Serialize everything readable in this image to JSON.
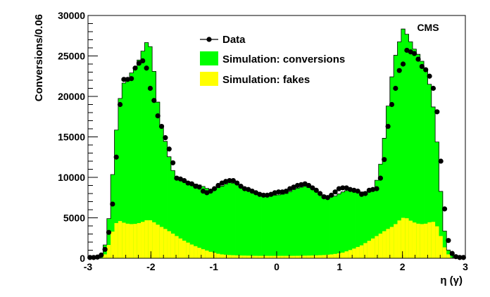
{
  "chart_data": {
    "type": "bar",
    "tag": "CMS",
    "xlabel": "η (γ)",
    "ylabel": "Conversions/0.06",
    "xlim": [
      -3,
      3
    ],
    "ylim": [
      0,
      30000
    ],
    "x_ticks": [
      "-3",
      "-2",
      "-1",
      "0",
      "1",
      "2",
      "3"
    ],
    "y_ticks": [
      "0",
      "5000",
      "10000",
      "15000",
      "20000",
      "25000",
      "30000"
    ],
    "bin_width": 0.06,
    "colors": {
      "conversions": "#00ff00",
      "fakes": "#ffff00",
      "data": "#000000"
    },
    "legend": {
      "placement": "top-center",
      "entries": [
        "Data",
        "Simulation: conversions",
        "Simulation: fakes"
      ]
    },
    "series": [
      {
        "name": "Simulation: conversions",
        "type": "stacked-hist",
        "points": [
          [
            -3.0,
            0
          ],
          [
            -2.85,
            0
          ],
          [
            -2.76,
            700
          ],
          [
            -2.7,
            2600
          ],
          [
            -2.64,
            7200
          ],
          [
            -2.58,
            13500
          ],
          [
            -2.52,
            18200
          ],
          [
            -2.46,
            21300
          ],
          [
            -2.4,
            22000
          ],
          [
            -2.34,
            22600
          ],
          [
            -2.28,
            23200
          ],
          [
            -2.22,
            24000
          ],
          [
            -2.16,
            25000
          ],
          [
            -2.1,
            26200
          ],
          [
            -2.04,
            27100
          ],
          [
            -1.98,
            25200
          ],
          [
            -1.92,
            21000
          ],
          [
            -1.86,
            17600
          ],
          [
            -1.8,
            15300
          ],
          [
            -1.74,
            13600
          ],
          [
            -1.68,
            11500
          ],
          [
            -1.62,
            10200
          ],
          [
            -1.5,
            9700
          ],
          [
            -1.35,
            9300
          ],
          [
            -1.2,
            9000
          ],
          [
            -1.05,
            8400
          ],
          [
            -0.9,
            8800
          ],
          [
            -0.75,
            9400
          ],
          [
            -0.6,
            9100
          ],
          [
            -0.45,
            8500
          ],
          [
            -0.3,
            8000
          ],
          [
            -0.15,
            7800
          ],
          [
            0.0,
            7800
          ],
          [
            0.15,
            8000
          ],
          [
            0.3,
            8600
          ],
          [
            0.45,
            8900
          ],
          [
            0.6,
            8500
          ],
          [
            0.75,
            7800
          ],
          [
            0.9,
            7600
          ],
          [
            1.05,
            8200
          ],
          [
            1.2,
            8600
          ],
          [
            1.35,
            8200
          ],
          [
            1.5,
            8200
          ],
          [
            1.6,
            9800
          ],
          [
            1.66,
            12000
          ],
          [
            1.72,
            15400
          ],
          [
            1.78,
            19500
          ],
          [
            1.84,
            23000
          ],
          [
            1.9,
            25500
          ],
          [
            1.96,
            27000
          ],
          [
            2.02,
            28600
          ],
          [
            2.08,
            27500
          ],
          [
            2.14,
            26600
          ],
          [
            2.2,
            25700
          ],
          [
            2.26,
            25100
          ],
          [
            2.32,
            24200
          ],
          [
            2.38,
            23000
          ],
          [
            2.44,
            21200
          ],
          [
            2.5,
            18200
          ],
          [
            2.56,
            13600
          ],
          [
            2.62,
            7200
          ],
          [
            2.68,
            2600
          ],
          [
            2.74,
            700
          ],
          [
            2.85,
            0
          ],
          [
            3.0,
            0
          ]
        ]
      },
      {
        "name": "Simulation: fakes",
        "type": "stacked-hist",
        "points": [
          [
            -3.0,
            0
          ],
          [
            -2.8,
            0
          ],
          [
            -2.7,
            700
          ],
          [
            -2.64,
            2600
          ],
          [
            -2.58,
            4000
          ],
          [
            -2.52,
            4700
          ],
          [
            -2.46,
            4500
          ],
          [
            -2.4,
            4300
          ],
          [
            -2.28,
            4200
          ],
          [
            -2.16,
            4400
          ],
          [
            -2.04,
            4800
          ],
          [
            -1.98,
            4600
          ],
          [
            -1.86,
            4000
          ],
          [
            -1.74,
            3500
          ],
          [
            -1.62,
            2900
          ],
          [
            -1.5,
            2300
          ],
          [
            -1.35,
            1700
          ],
          [
            -1.2,
            1200
          ],
          [
            -1.05,
            800
          ],
          [
            -0.9,
            500
          ],
          [
            -0.75,
            400
          ],
          [
            -0.6,
            350
          ],
          [
            -0.3,
            300
          ],
          [
            0.0,
            300
          ],
          [
            0.3,
            300
          ],
          [
            0.6,
            350
          ],
          [
            0.75,
            400
          ],
          [
            0.9,
            500
          ],
          [
            1.05,
            700
          ],
          [
            1.2,
            1100
          ],
          [
            1.35,
            1600
          ],
          [
            1.5,
            2300
          ],
          [
            1.62,
            2900
          ],
          [
            1.74,
            3500
          ],
          [
            1.86,
            4000
          ],
          [
            1.98,
            4900
          ],
          [
            2.04,
            5100
          ],
          [
            2.16,
            4500
          ],
          [
            2.28,
            4200
          ],
          [
            2.4,
            4300
          ],
          [
            2.46,
            4600
          ],
          [
            2.52,
            4400
          ],
          [
            2.58,
            3500
          ],
          [
            2.64,
            2000
          ],
          [
            2.7,
            700
          ],
          [
            2.8,
            0
          ],
          [
            3.0,
            0
          ]
        ]
      },
      {
        "name": "Data",
        "type": "points",
        "points": [
          [
            -2.97,
            100
          ],
          [
            -2.91,
            100
          ],
          [
            -2.85,
            150
          ],
          [
            -2.79,
            400
          ],
          [
            -2.73,
            1100
          ],
          [
            -2.67,
            3200
          ],
          [
            -2.61,
            6700
          ],
          [
            -2.55,
            12500
          ],
          [
            -2.49,
            19000
          ],
          [
            -2.43,
            22100
          ],
          [
            -2.37,
            22100
          ],
          [
            -2.31,
            22200
          ],
          [
            -2.25,
            23500
          ],
          [
            -2.19,
            24100
          ],
          [
            -2.13,
            24400
          ],
          [
            -2.07,
            23500
          ],
          [
            -2.01,
            21000
          ],
          [
            -1.95,
            19500
          ],
          [
            -1.89,
            17600
          ],
          [
            -1.83,
            16300
          ],
          [
            -1.77,
            14900
          ],
          [
            -1.71,
            13500
          ],
          [
            -1.65,
            11800
          ],
          [
            -1.59,
            9900
          ],
          [
            -1.53,
            9800
          ],
          [
            -1.47,
            9600
          ],
          [
            -1.41,
            9300
          ],
          [
            -1.35,
            9200
          ],
          [
            -1.29,
            8900
          ],
          [
            -1.23,
            8800
          ],
          [
            -1.17,
            8300
          ],
          [
            -1.11,
            8100
          ],
          [
            -1.05,
            8300
          ],
          [
            -0.99,
            8600
          ],
          [
            -0.93,
            9000
          ],
          [
            -0.87,
            9300
          ],
          [
            -0.81,
            9500
          ],
          [
            -0.75,
            9600
          ],
          [
            -0.69,
            9600
          ],
          [
            -0.63,
            9300
          ],
          [
            -0.57,
            8900
          ],
          [
            -0.51,
            8600
          ],
          [
            -0.45,
            8500
          ],
          [
            -0.39,
            8300
          ],
          [
            -0.33,
            8100
          ],
          [
            -0.27,
            7900
          ],
          [
            -0.21,
            7800
          ],
          [
            -0.15,
            7800
          ],
          [
            -0.09,
            7900
          ],
          [
            -0.03,
            8100
          ],
          [
            0.03,
            8200
          ],
          [
            0.09,
            8200
          ],
          [
            0.15,
            8300
          ],
          [
            0.21,
            8600
          ],
          [
            0.27,
            8800
          ],
          [
            0.33,
            9000
          ],
          [
            0.39,
            9100
          ],
          [
            0.45,
            9200
          ],
          [
            0.51,
            9000
          ],
          [
            0.57,
            8700
          ],
          [
            0.63,
            8400
          ],
          [
            0.69,
            8000
          ],
          [
            0.75,
            7600
          ],
          [
            0.81,
            7500
          ],
          [
            0.87,
            7800
          ],
          [
            0.93,
            8200
          ],
          [
            0.99,
            8600
          ],
          [
            1.05,
            8700
          ],
          [
            1.11,
            8700
          ],
          [
            1.17,
            8500
          ],
          [
            1.23,
            8400
          ],
          [
            1.29,
            8300
          ],
          [
            1.35,
            7900
          ],
          [
            1.41,
            8000
          ],
          [
            1.47,
            8400
          ],
          [
            1.53,
            8500
          ],
          [
            1.59,
            8600
          ],
          [
            1.65,
            9900
          ],
          [
            1.71,
            12200
          ],
          [
            1.77,
            16300
          ],
          [
            1.83,
            19000
          ],
          [
            1.89,
            21000
          ],
          [
            1.95,
            23200
          ],
          [
            2.01,
            24000
          ],
          [
            2.07,
            25700
          ],
          [
            2.13,
            25500
          ],
          [
            2.19,
            25300
          ],
          [
            2.25,
            24600
          ],
          [
            2.31,
            23700
          ],
          [
            2.37,
            23300
          ],
          [
            2.43,
            22500
          ],
          [
            2.49,
            21000
          ],
          [
            2.55,
            18100
          ],
          [
            2.61,
            12000
          ],
          [
            2.67,
            6100
          ],
          [
            2.73,
            2200
          ],
          [
            2.79,
            600
          ],
          [
            2.85,
            200
          ],
          [
            2.91,
            100
          ],
          [
            2.97,
            100
          ]
        ]
      }
    ]
  }
}
